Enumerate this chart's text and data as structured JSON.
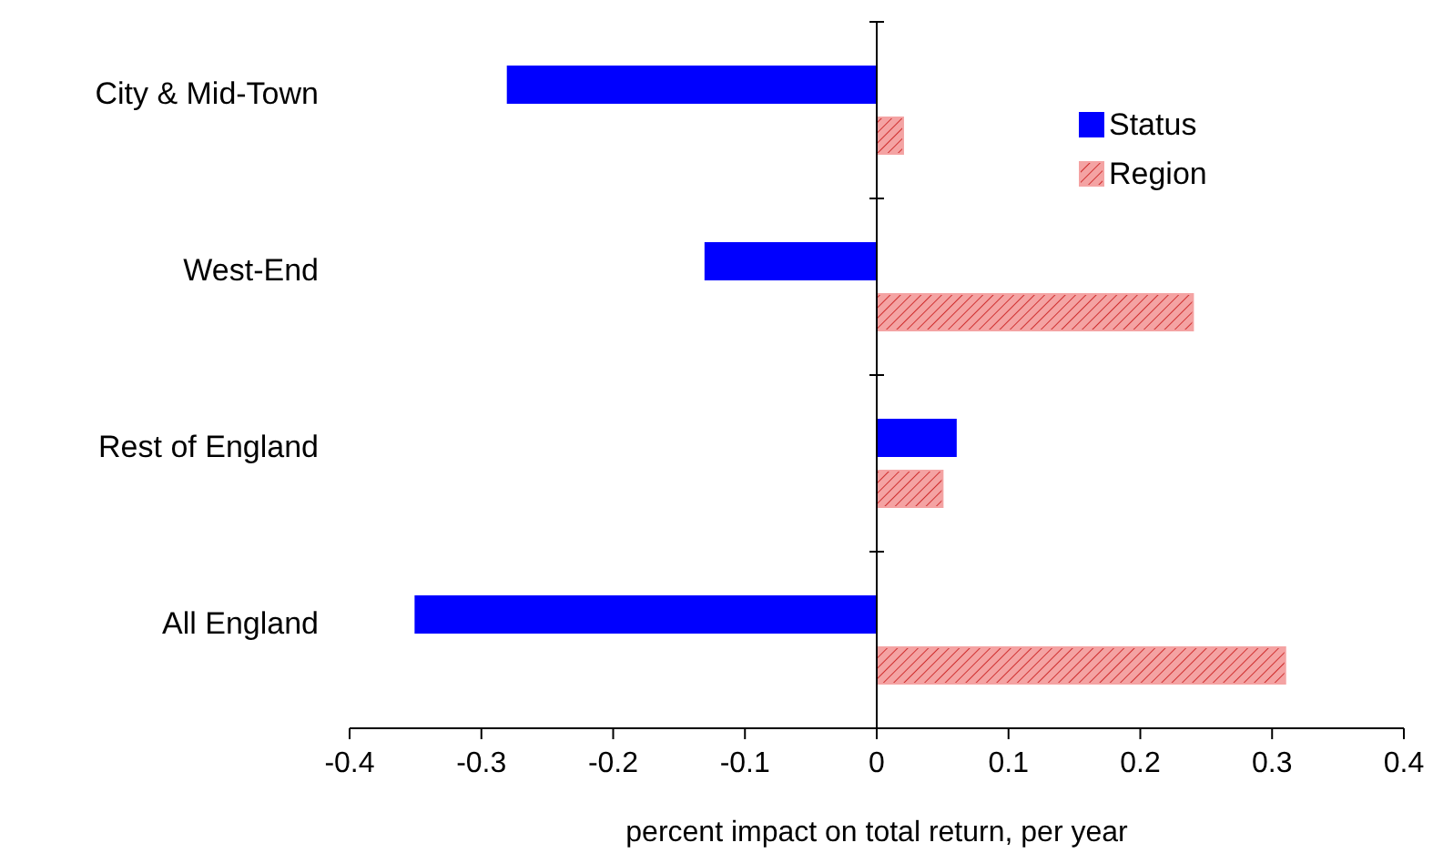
{
  "chart_data": {
    "type": "bar",
    "orientation": "horizontal",
    "xlabel": "percent impact on total return, per year",
    "categories": [
      "City & Mid-Town",
      "West-End",
      "Rest of England",
      "All England"
    ],
    "series": [
      {
        "name": "Status",
        "color": "#0000ff",
        "values": [
          -0.28,
          -0.13,
          0.06,
          -0.35
        ]
      },
      {
        "name": "Region",
        "color": "#f4a3a3",
        "values": [
          0.02,
          0.24,
          0.05,
          0.31
        ]
      }
    ],
    "xlim": [
      -0.4,
      0.4
    ],
    "xticks": [
      -0.4,
      -0.3,
      -0.2,
      -0.1,
      0,
      0.1,
      0.2,
      0.3,
      0.4
    ],
    "legend": "top right"
  }
}
